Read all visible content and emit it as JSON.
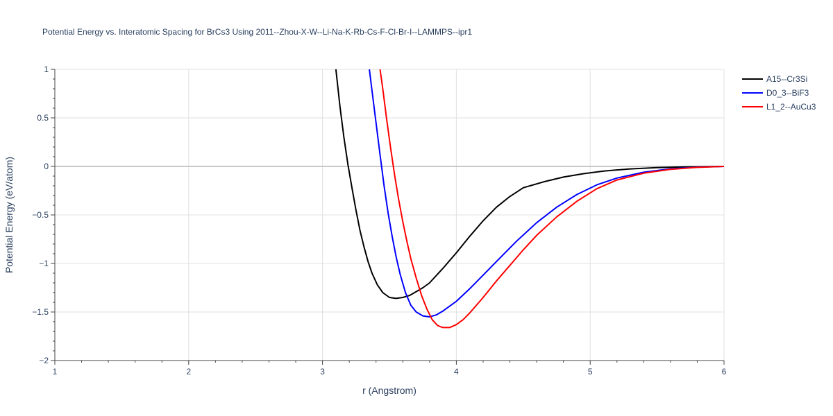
{
  "chart_data": {
    "type": "line",
    "title": "Potential Energy vs. Interatomic Spacing for BrCs3 Using 2011--Zhou-X-W--Li-Na-K-Rb-Cs-F-Cl-Br-I--LAMMPS--ipr1",
    "xlabel": "r (Angstrom)",
    "ylabel": "Potential Energy (eV/atom)",
    "xlim": [
      1,
      6
    ],
    "ylim": [
      -2,
      1
    ],
    "x_ticks": [
      1,
      2,
      3,
      4,
      5,
      6
    ],
    "x_tick_labels": [
      "1",
      "2",
      "3",
      "4",
      "5",
      "6"
    ],
    "y_ticks": [
      1,
      0.5,
      0,
      -0.5,
      -1,
      -1.5,
      -2
    ],
    "y_tick_labels": [
      "1",
      "0.5",
      "0",
      "−0.5",
      "−1",
      "−1.5",
      "−2"
    ],
    "grid": true,
    "legend_position": "top-right",
    "series": [
      {
        "name": "A15--Cr3Si",
        "color": "#000000",
        "x": [
          3.1,
          3.13,
          3.16,
          3.19,
          3.22,
          3.25,
          3.28,
          3.31,
          3.34,
          3.37,
          3.41,
          3.45,
          3.5,
          3.55,
          3.6,
          3.65,
          3.7,
          3.75,
          3.8,
          3.9,
          4.0,
          4.1,
          4.2,
          4.3,
          4.4,
          4.5,
          4.65,
          4.8,
          4.95,
          5.1,
          5.3,
          5.5,
          5.7,
          6.0
        ],
        "y": [
          1.0,
          0.62,
          0.3,
          0.02,
          -0.22,
          -0.45,
          -0.66,
          -0.83,
          -0.98,
          -1.1,
          -1.22,
          -1.3,
          -1.35,
          -1.36,
          -1.35,
          -1.33,
          -1.29,
          -1.25,
          -1.2,
          -1.05,
          -0.89,
          -0.72,
          -0.56,
          -0.42,
          -0.31,
          -0.22,
          -0.16,
          -0.11,
          -0.075,
          -0.048,
          -0.026,
          -0.012,
          -0.005,
          0.0
        ]
      },
      {
        "name": "D0_3--BiF3",
        "color": "#0000ff",
        "x": [
          3.35,
          3.37,
          3.4,
          3.43,
          3.46,
          3.49,
          3.52,
          3.55,
          3.58,
          3.62,
          3.66,
          3.7,
          3.75,
          3.8,
          3.85,
          3.9,
          4.0,
          4.1,
          4.2,
          4.3,
          4.45,
          4.6,
          4.75,
          4.9,
          5.05,
          5.2,
          5.4,
          5.6,
          5.8,
          6.0
        ],
        "y": [
          1.0,
          0.78,
          0.45,
          0.12,
          -0.2,
          -0.48,
          -0.72,
          -0.93,
          -1.11,
          -1.3,
          -1.43,
          -1.5,
          -1.54,
          -1.55,
          -1.53,
          -1.49,
          -1.39,
          -1.26,
          -1.12,
          -0.98,
          -0.77,
          -0.58,
          -0.42,
          -0.29,
          -0.19,
          -0.12,
          -0.06,
          -0.025,
          -0.008,
          0.0
        ]
      },
      {
        "name": "L1_2--AuCu3",
        "color": "#ff0000",
        "x": [
          3.43,
          3.45,
          3.48,
          3.51,
          3.54,
          3.57,
          3.6,
          3.63,
          3.66,
          3.7,
          3.74,
          3.78,
          3.82,
          3.86,
          3.9,
          3.95,
          4.0,
          4.05,
          4.1,
          4.2,
          4.3,
          4.4,
          4.5,
          4.6,
          4.75,
          4.9,
          5.05,
          5.2,
          5.4,
          5.6,
          5.8,
          6.0
        ],
        "y": [
          1.0,
          0.8,
          0.48,
          0.18,
          -0.1,
          -0.35,
          -0.57,
          -0.77,
          -0.95,
          -1.15,
          -1.33,
          -1.47,
          -1.58,
          -1.64,
          -1.66,
          -1.66,
          -1.63,
          -1.58,
          -1.51,
          -1.35,
          -1.18,
          -1.02,
          -0.86,
          -0.71,
          -0.52,
          -0.36,
          -0.23,
          -0.14,
          -0.07,
          -0.03,
          -0.01,
          0.0
        ]
      }
    ]
  }
}
